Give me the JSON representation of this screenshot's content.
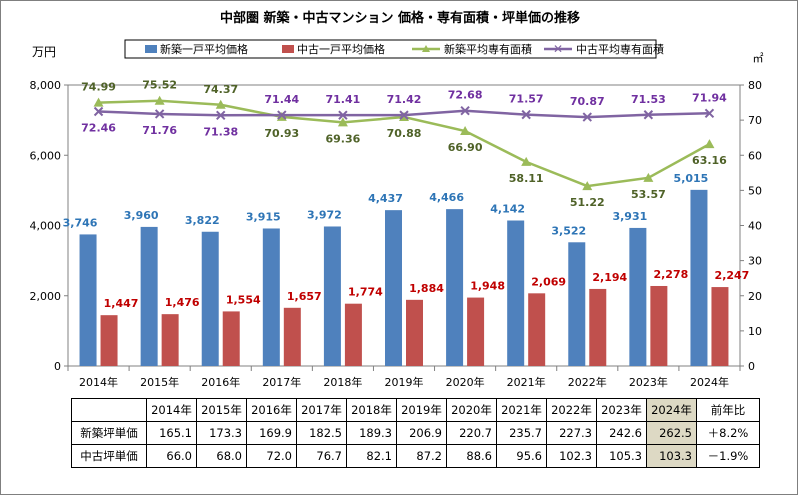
{
  "chart_data": {
    "type": "bar",
    "title": "中部圏 新築・中古マンション 価格・専有面積・坪単価の推移",
    "left_axis_unit": "万円",
    "right_axis_unit": "㎡",
    "categories": [
      "2014年",
      "2015年",
      "2016年",
      "2017年",
      "2018年",
      "2019年",
      "2020年",
      "2021年",
      "2022年",
      "2023年",
      "2024年"
    ],
    "y_left_ticks": [
      "0",
      "2,000",
      "4,000",
      "6,000",
      "8,000"
    ],
    "y_right_ticks": [
      "0",
      "10",
      "20",
      "30",
      "40",
      "50",
      "60",
      "70",
      "80"
    ],
    "ylim_left": [
      0,
      8000
    ],
    "ylim_right": [
      0,
      80
    ],
    "series": [
      {
        "name": "新築一戸平均価格",
        "kind": "bar",
        "axis": "left",
        "color": "#4f81bd",
        "label_color": "#2e75b6",
        "values": [
          3746,
          3960,
          3822,
          3915,
          3972,
          4437,
          4466,
          4142,
          3522,
          3931,
          5015
        ],
        "labels": [
          "3,746",
          "3,960",
          "3,822",
          "3,915",
          "3,972",
          "4,437",
          "4,466",
          "4,142",
          "3,522",
          "3,931",
          "5,015"
        ]
      },
      {
        "name": "中古一戸平均価格",
        "kind": "bar",
        "axis": "left",
        "color": "#c0504d",
        "label_color": "#c00000",
        "values": [
          1447,
          1476,
          1554,
          1657,
          1774,
          1884,
          1948,
          2069,
          2194,
          2278,
          2247
        ],
        "labels": [
          "1,447",
          "1,476",
          "1,554",
          "1,657",
          "1,774",
          "1,884",
          "1,948",
          "2,069",
          "2,194",
          "2,278",
          "2,247"
        ]
      },
      {
        "name": "新築平均専有面積",
        "kind": "line",
        "axis": "right",
        "color": "#9bbb59",
        "label_color": "#4f6228",
        "values": [
          74.99,
          75.52,
          74.37,
          70.93,
          69.36,
          70.88,
          66.9,
          58.11,
          51.22,
          53.57,
          63.16
        ],
        "labels": [
          "74.99",
          "75.52",
          "74.37",
          "70.93",
          "69.36",
          "70.88",
          "66.90",
          "58.11",
          "51.22",
          "53.57",
          "63.16"
        ]
      },
      {
        "name": "中古平均専有面積",
        "kind": "line",
        "axis": "right",
        "color": "#8064a2",
        "label_color": "#7030a0",
        "values": [
          72.46,
          71.76,
          71.38,
          71.44,
          71.41,
          71.42,
          72.68,
          71.57,
          70.87,
          71.53,
          71.94
        ],
        "labels": [
          "72.46",
          "71.76",
          "71.38",
          "71.44",
          "71.41",
          "71.42",
          "72.68",
          "71.57",
          "70.87",
          "71.53",
          "71.94"
        ]
      }
    ],
    "legend": "top",
    "table": {
      "header": [
        "2014年",
        "2015年",
        "2016年",
        "2017年",
        "2018年",
        "2019年",
        "2020年",
        "2021年",
        "2022年",
        "2023年",
        "2024年",
        "前年比"
      ],
      "rows": [
        {
          "label": "新築坪単価",
          "values": [
            "165.1",
            "173.3",
            "169.9",
            "182.5",
            "189.3",
            "206.9",
            "220.7",
            "235.7",
            "227.3",
            "242.6",
            "262.5"
          ],
          "change": "＋8.2%"
        },
        {
          "label": "中古坪単価",
          "values": [
            "66.0",
            "68.0",
            "72.0",
            "76.7",
            "82.1",
            "87.2",
            "88.6",
            "95.6",
            "102.3",
            "105.3",
            "103.3"
          ],
          "change": "－1.9%"
        }
      ]
    }
  }
}
